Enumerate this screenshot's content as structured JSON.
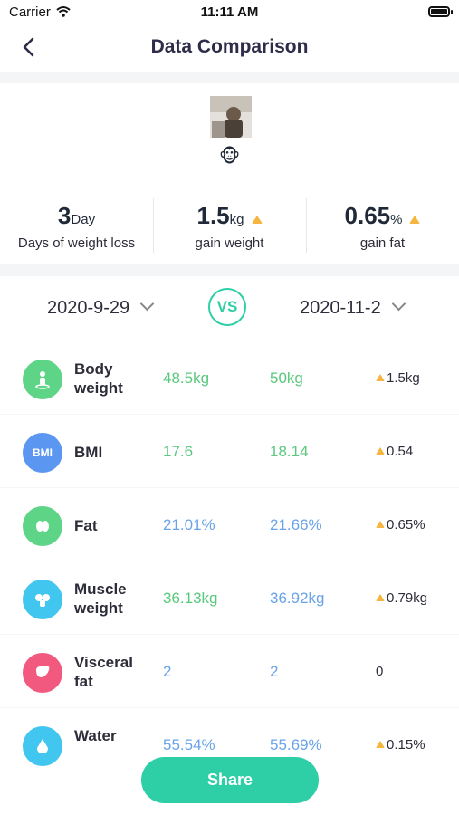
{
  "status_bar": {
    "carrier": "Carrier",
    "time": "11:11 AM"
  },
  "nav": {
    "title": "Data Comparison"
  },
  "profile": {
    "emoji": "🐵"
  },
  "summary": [
    {
      "value": "3",
      "unit": "Day",
      "label": "Days of weight loss",
      "trend": ""
    },
    {
      "value": "1.5",
      "unit": "kg",
      "label": "gain weight",
      "trend": "up"
    },
    {
      "value": "0.65",
      "unit": "%",
      "label": "gain fat",
      "trend": "up"
    }
  ],
  "comparison": {
    "date_left": "2020-9-29",
    "vs_label": "VS",
    "date_right": "2020-11-2"
  },
  "metrics": [
    {
      "name": "Body weight",
      "icon": "body-weight-icon",
      "color": "#5dd486",
      "value_left": "48.5kg",
      "value_right": "50kg",
      "diff": "1.5kg",
      "value_color": "green"
    },
    {
      "name": "BMI",
      "icon": "bmi-icon",
      "color": "#5b97f0",
      "value_left": "17.6",
      "value_right": "18.14",
      "diff": "0.54",
      "value_color": "green"
    },
    {
      "name": "Fat",
      "icon": "fat-icon",
      "color": "#5dd486",
      "value_left": "21.01%",
      "value_right": "21.66%",
      "diff": "0.65%",
      "value_color": "blue"
    },
    {
      "name": "Muscle weight",
      "icon": "muscle-icon",
      "color": "#41c6f0",
      "value_left": "36.13kg",
      "value_right": "36.92kg",
      "diff": "0.79kg",
      "value_color": "green"
    },
    {
      "name": "Visceral fat",
      "icon": "visceral-fat-icon",
      "color": "#f1597f",
      "value_left": "2",
      "value_right": "2",
      "diff": "0",
      "value_color": "blue"
    },
    {
      "name": "Water",
      "icon": "water-icon",
      "color": "#41c6f0",
      "value_left": "55.54%",
      "value_right": "55.69%",
      "diff": "0.15%",
      "value_color": "blue"
    }
  ],
  "share_label": "Share"
}
